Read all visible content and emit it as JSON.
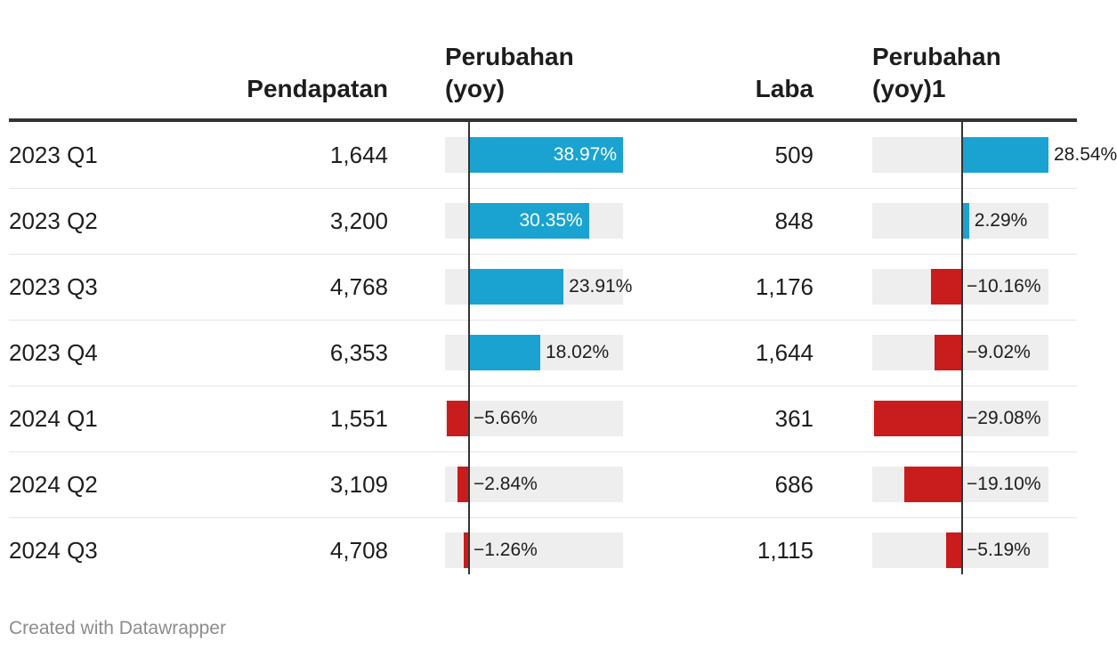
{
  "headers": {
    "revenue": "Pendapatan",
    "revenue_change_line1": "Perubahan",
    "revenue_change_line2": "(yoy)",
    "profit": "Laba",
    "profit_change_line1": "Perubahan",
    "profit_change_line2": "(yoy)1"
  },
  "footer": "Created with Datawrapper",
  "colors": {
    "positive": "#1aa3d1",
    "negative": "#c91c1c",
    "track": "#eeeeee"
  },
  "chart_data": {
    "type": "table",
    "columns": [
      "",
      "Pendapatan",
      "Perubahan (yoy)",
      "Laba",
      "Perubahan (yoy)1"
    ],
    "rows": [
      {
        "period": "2023 Q1",
        "revenue": "1,644",
        "revenue_change": 38.97,
        "revenue_change_label": "38.97%",
        "profit": "509",
        "profit_change": 28.54,
        "profit_change_label": "28.54%"
      },
      {
        "period": "2023 Q2",
        "revenue": "3,200",
        "revenue_change": 30.35,
        "revenue_change_label": "30.35%",
        "profit": "848",
        "profit_change": 2.29,
        "profit_change_label": "2.29%"
      },
      {
        "period": "2023 Q3",
        "revenue": "4,768",
        "revenue_change": 23.91,
        "revenue_change_label": "23.91%",
        "profit": "1,176",
        "profit_change": -10.16,
        "profit_change_label": "−10.16%"
      },
      {
        "period": "2023 Q4",
        "revenue": "6,353",
        "revenue_change": 18.02,
        "revenue_change_label": "18.02%",
        "profit": "1,644",
        "profit_change": -9.02,
        "profit_change_label": "−9.02%"
      },
      {
        "period": "2024 Q1",
        "revenue": "1,551",
        "revenue_change": -5.66,
        "revenue_change_label": "−5.66%",
        "profit": "361",
        "profit_change": -29.08,
        "profit_change_label": "−29.08%"
      },
      {
        "period": "2024 Q2",
        "revenue": "3,109",
        "revenue_change": -2.84,
        "revenue_change_label": "−2.84%",
        "profit": "686",
        "profit_change": -19.1,
        "profit_change_label": "−19.10%"
      },
      {
        "period": "2024 Q3",
        "revenue": "4,708",
        "revenue_change": -1.26,
        "revenue_change_label": "−1.26%",
        "profit": "1,115",
        "profit_change": -5.19,
        "profit_change_label": "−5.19%"
      }
    ],
    "revenue_change_range": [
      -5.66,
      38.97
    ],
    "profit_change_range": [
      -29.08,
      28.54
    ]
  }
}
